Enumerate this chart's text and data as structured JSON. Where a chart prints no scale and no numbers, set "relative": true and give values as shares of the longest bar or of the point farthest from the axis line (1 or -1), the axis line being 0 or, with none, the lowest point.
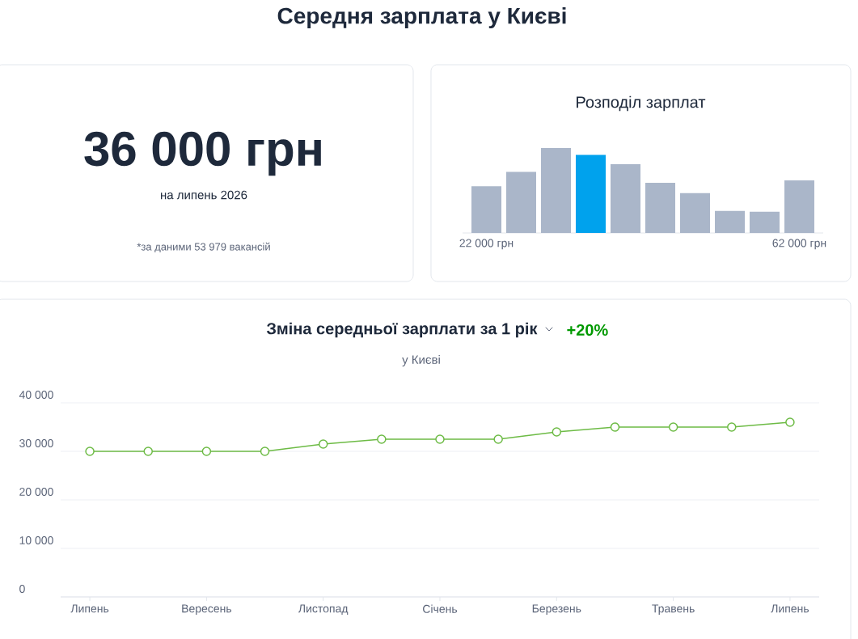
{
  "chart_data": [
    {
      "type": "other",
      "title": "Середня зарплата у Києві",
      "annotations": [
        "36 000 грн",
        "на липень 2026",
        "*за даними 53 979 вакансій"
      ]
    },
    {
      "type": "bar",
      "title": "Розподіл зарплат",
      "relative": true,
      "categories": [
        "22 000 грн",
        null,
        null,
        null,
        null,
        null,
        null,
        null,
        null,
        "62 000 грн"
      ],
      "values": [
        0.55,
        0.72,
        1,
        0.92,
        0.81,
        0.59,
        0.47,
        0.26,
        0.25,
        0.62
      ],
      "colors": [
        "#aab6c9",
        "#aab6c9",
        "#aab6c9",
        "#00a2ed",
        "#aab6c9",
        "#aab6c9",
        "#aab6c9",
        "#aab6c9",
        "#aab6c9",
        "#aab6c9"
      ]
    },
    {
      "type": "line",
      "title": "Зміна середньої зарплати за 1 рік",
      "subtitle": "у Києві",
      "annotations": [
        "+20%"
      ],
      "categories": [
        "Липень",
        null,
        "Вересень",
        null,
        "Листопад",
        null,
        "Січень",
        null,
        "Березень",
        null,
        "Травень",
        null,
        "Липень"
      ],
      "values": [
        30000,
        30000,
        30000,
        30000,
        31500,
        32500,
        32500,
        32500,
        34000,
        35000,
        35000,
        35000,
        36000
      ],
      "color": "#6dbb45",
      "marker": "circle",
      "grid": "y",
      "ylim": [
        0,
        40000
      ],
      "yticks": [
        {
          "value": 0,
          "label": "0"
        },
        {
          "value": 10000,
          "label": "10 000"
        },
        {
          "value": 20000,
          "label": "20 000"
        },
        {
          "value": 30000,
          "label": "30 000"
        },
        {
          "value": 40000,
          "label": "40 000"
        }
      ]
    }
  ]
}
